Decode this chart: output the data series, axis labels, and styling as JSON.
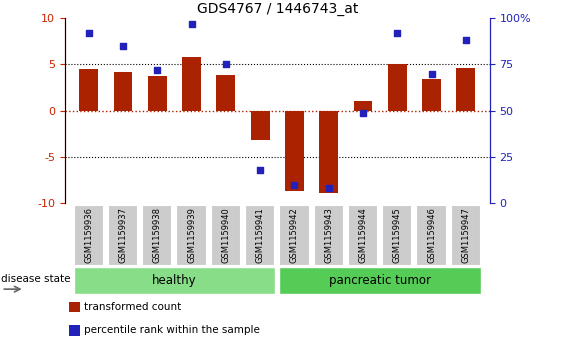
{
  "title": "GDS4767 / 1446743_at",
  "samples": [
    "GSM1159936",
    "GSM1159937",
    "GSM1159938",
    "GSM1159939",
    "GSM1159940",
    "GSM1159941",
    "GSM1159942",
    "GSM1159943",
    "GSM1159944",
    "GSM1159945",
    "GSM1159946",
    "GSM1159947"
  ],
  "bar_values": [
    4.5,
    4.2,
    3.8,
    5.8,
    3.9,
    -3.2,
    -8.7,
    -8.9,
    1.1,
    5.1,
    3.4,
    4.6
  ],
  "dot_percentiles": [
    92,
    85,
    72,
    97,
    75,
    18,
    10,
    8,
    49,
    92,
    70,
    88
  ],
  "bar_color": "#aa2200",
  "dot_color": "#2222bb",
  "ylim": [
    -10,
    10
  ],
  "y2lim": [
    0,
    100
  ],
  "yticks_left": [
    -10,
    -5,
    0,
    5,
    10
  ],
  "yticks_right": [
    0,
    25,
    50,
    75,
    100
  ],
  "groups": [
    {
      "label": "healthy",
      "start": 0,
      "end": 5,
      "color": "#88dd88"
    },
    {
      "label": "pancreatic tumor",
      "start": 6,
      "end": 11,
      "color": "#55cc55"
    }
  ],
  "disease_state_label": "disease state",
  "legend_items": [
    {
      "color": "#aa2200",
      "label": "transformed count"
    },
    {
      "color": "#2222bb",
      "label": "percentile rank within the sample"
    }
  ],
  "tick_color_left": "#cc2200",
  "tick_color_right": "#2222bb",
  "sample_box_color": "#cccccc",
  "bar_width": 0.55
}
